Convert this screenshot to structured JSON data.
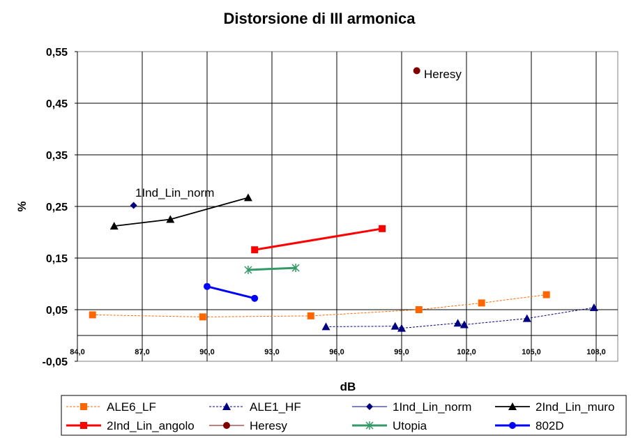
{
  "chart_data": {
    "type": "scatter",
    "title": "Distorsione di III armonica",
    "xlabel": "dB",
    "ylabel": "%",
    "xlim": [
      84.0,
      109.0
    ],
    "ylim": [
      -0.05,
      0.55
    ],
    "x_ticks": [
      "84,0",
      "87,0",
      "90,0",
      "93,0",
      "96,0",
      "99,0",
      "102,0",
      "105,0",
      "108,0"
    ],
    "x_tick_values": [
      84,
      87,
      90,
      93,
      96,
      99,
      102,
      105,
      108
    ],
    "y_ticks": [
      "0,55",
      "0,45",
      "0,35",
      "0,25",
      "0,15",
      "0,05",
      "-0,05"
    ],
    "y_tick_values": [
      0.55,
      0.45,
      0.35,
      0.25,
      0.15,
      0.05,
      -0.05
    ],
    "grid": true,
    "legend_position": "bottom",
    "annotations": [
      {
        "text": "Heresy",
        "x": 99.7,
        "y": 0.513
      },
      {
        "text": "1Ind_Lin_norm",
        "x": 86.6,
        "y": 0.252
      }
    ],
    "series": [
      {
        "name": "ALE6_LF",
        "color": "#FF6600",
        "marker": "square",
        "line": "dashed-thin",
        "x": [
          84.7,
          89.8,
          94.8,
          99.8,
          102.7,
          105.7
        ],
        "y": [
          0.04,
          0.036,
          0.038,
          0.05,
          0.063,
          0.079
        ]
      },
      {
        "name": "ALE1_HF",
        "color": "#000080",
        "marker": "triangle",
        "line": "dashed-thin",
        "x": [
          95.5,
          98.7,
          99.0,
          101.6,
          101.9,
          104.8,
          107.9
        ],
        "y": [
          0.017,
          0.018,
          0.014,
          0.024,
          0.021,
          0.033,
          0.054
        ]
      },
      {
        "name": "1Ind_Lin_norm",
        "color": "#000080",
        "marker": "diamond",
        "line": "thin",
        "x": [
          86.6
        ],
        "y": [
          0.252
        ]
      },
      {
        "name": "2Ind_Lin_muro",
        "color": "#000000",
        "marker": "triangle",
        "line": "solid",
        "x": [
          85.7,
          88.3,
          91.9
        ],
        "y": [
          0.212,
          0.225,
          0.267
        ]
      },
      {
        "name": "2Ind_Lin_angolo",
        "color": "#FF0000",
        "marker": "square",
        "line": "thick",
        "x": [
          92.2,
          98.1
        ],
        "y": [
          0.166,
          0.207
        ]
      },
      {
        "name": "Heresy",
        "color": "#800000",
        "marker": "circle",
        "line": "thin",
        "x": [
          99.7
        ],
        "y": [
          0.513
        ]
      },
      {
        "name": "Utopia",
        "color": "#339966",
        "marker": "star",
        "line": "thick",
        "x": [
          91.9,
          94.1
        ],
        "y": [
          0.127,
          0.131
        ]
      },
      {
        "name": "802D",
        "color": "#0000FF",
        "marker": "circle",
        "line": "thick",
        "x": [
          90.0,
          92.2
        ],
        "y": [
          0.095,
          0.072
        ]
      }
    ]
  }
}
